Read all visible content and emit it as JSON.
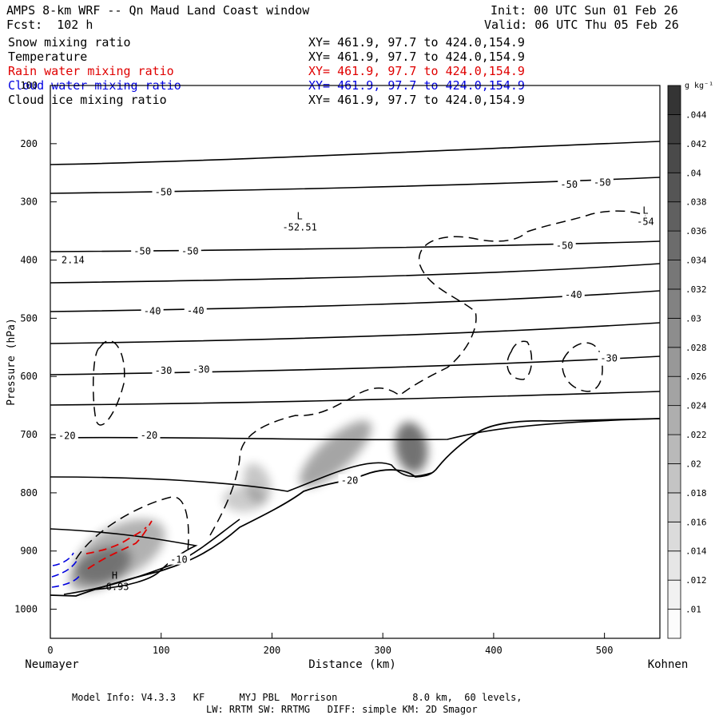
{
  "header": {
    "title": "AMPS 8-km WRF -- Qn Maud Land Coast window",
    "forecast": "Fcst:  102 h",
    "init": "Init: 00 UTC Sun 01 Feb 26",
    "valid": "Valid: 06 UTC Thu 05 Feb 26"
  },
  "fields": [
    {
      "name": "Snow mixing ratio",
      "xy": "XY= 461.9, 97.7 to 424.0,154.9",
      "color": "#000000"
    },
    {
      "name": "Temperature",
      "xy": "XY= 461.9, 97.7 to 424.0,154.9",
      "color": "#000000"
    },
    {
      "name": "Rain water mixing ratio",
      "xy": "XY= 461.9, 97.7 to 424.0,154.9",
      "color": "#e00000"
    },
    {
      "name": "Cloud water mixing ratio",
      "xy": "XY= 461.9, 97.7 to 424.0,154.9",
      "color": "#0000e0"
    },
    {
      "name": "Cloud ice mixing ratio",
      "xy": "XY= 461.9, 97.7 to 424.0,154.9",
      "color": "#000000"
    }
  ],
  "chart_data": {
    "type": "contour",
    "xlabel": "Distance (km)",
    "ylabel": "Pressure (hPa)",
    "xlim": [
      0,
      550
    ],
    "ylim": [
      1050,
      100
    ],
    "x_ticks": [
      0,
      100,
      200,
      300,
      400,
      500
    ],
    "y_ticks": [
      100,
      200,
      300,
      400,
      500,
      600,
      700,
      800,
      900,
      1000
    ],
    "x_end_labels": {
      "left": "Neumayer",
      "right": "Kohnen"
    },
    "colorbar": {
      "unit": "g kg⁻¹",
      "labels": [
        ".01",
        ".012",
        ".014",
        ".016",
        ".018",
        ".02",
        ".022",
        ".024",
        ".026",
        ".028",
        ".03",
        ".032",
        ".034",
        ".036",
        ".038",
        ".04",
        ".042",
        ".044"
      ]
    },
    "temperature_contour_labels": [
      {
        "label": "-50",
        "x": 102,
        "p": 283
      },
      {
        "label": "-50",
        "x": 468,
        "p": 270
      },
      {
        "label": "-50",
        "x": 498,
        "p": 267
      },
      {
        "label": "-50",
        "x": 83,
        "p": 385
      },
      {
        "label": "-50",
        "x": 126,
        "p": 385
      },
      {
        "label": "-50",
        "x": 464,
        "p": 375
      },
      {
        "label": "-40",
        "x": 92,
        "p": 488
      },
      {
        "label": "-40",
        "x": 131,
        "p": 487
      },
      {
        "label": "-40",
        "x": 472,
        "p": 460
      },
      {
        "label": "-30",
        "x": 102,
        "p": 590
      },
      {
        "label": "-30",
        "x": 136,
        "p": 588
      },
      {
        "label": "-30",
        "x": 504,
        "p": 569
      },
      {
        "label": "-20",
        "x": 15,
        "p": 702
      },
      {
        "label": "-20",
        "x": 89,
        "p": 701
      },
      {
        "label": "-20",
        "x": 270,
        "p": 779
      },
      {
        "label": "-10",
        "x": 116,
        "p": 915
      }
    ],
    "extrema": [
      {
        "type": "L",
        "value": "-52.51",
        "x": 225,
        "p": 330
      },
      {
        "type": "L",
        "value": "-54",
        "x": 537,
        "p": 320
      },
      {
        "type": "H",
        "value": "-6.93",
        "x": 58,
        "p": 948
      },
      {
        "type": "value",
        "value": "2.14",
        "x": 10,
        "p": 400
      }
    ]
  },
  "footer": {
    "line1": "Model Info: V4.3.3   KF      MYJ PBL  Morrison             8.0 km,  60 levels,",
    "line2": "LW: RRTM SW: RRTMG   DIFF: simple KM: 2D Smagor"
  }
}
